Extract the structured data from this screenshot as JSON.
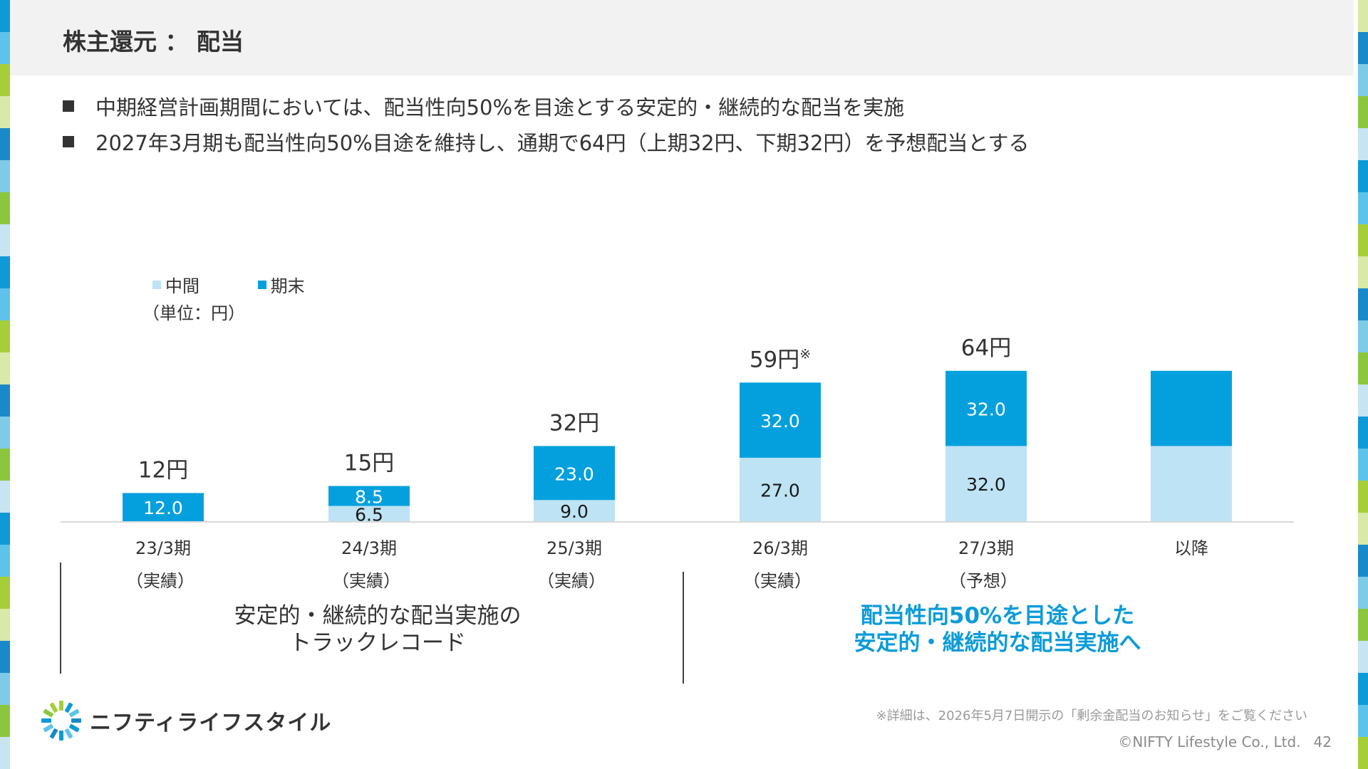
{
  "page": {
    "title": "株主還元 ： 配当",
    "bullets": [
      "中期経営計画期間においては、配当性向50%を目途とする安定的・継続的な配当を実施",
      "2027年3月期も配当性向50%目途を維持し、通期で64円（上期32円、下期32円）を予想配当とする"
    ],
    "left_caption": [
      "安定的・継続的な配当実施の",
      "トラックレコード"
    ],
    "right_caption": [
      "配当性向50%を目途とした",
      "安定的・継続的な配当実施へ"
    ],
    "footnote": "※詳細は、2026年5月7日開示の「剰余金配当のお知らせ」をご覧ください",
    "copyright": "©NIFTY Lifestyle Co., Ltd.",
    "page_number": "42",
    "logo_text": "ニフティライフスタイル",
    "logo_icon": "nifty-burst-logo-icon"
  },
  "colors": {
    "interim": "#bde3f4",
    "year_end": "#04a0de",
    "accent_text": "#0b9bd8",
    "stripe": [
      "#0e9ad7",
      "#5ec3ea",
      "#a5ce39",
      "#d8e9a8",
      "#1a89c9",
      "#7ecbe8",
      "#8cc63f",
      "#c7e4f3"
    ]
  },
  "chart_data": {
    "type": "bar",
    "stacked": true,
    "unit_label": "（単位：円）",
    "legend": [
      "中間",
      "期末"
    ],
    "legend_position": "top-left",
    "grid": false,
    "ylim": [
      0,
      64
    ],
    "categories": [
      "23/3期",
      "24/3期",
      "25/3期",
      "26/3期",
      "27/3期",
      "以降"
    ],
    "category_notes": [
      "（実績）",
      "（実績）",
      "（実績）",
      "（実績）",
      "（予想）",
      ""
    ],
    "series": [
      {
        "name": "中間",
        "values": [
          0,
          6.5,
          9.0,
          27.0,
          32.0,
          32.0
        ],
        "labels": [
          "",
          "6.5",
          "9.0",
          "27.0",
          "32.0",
          ""
        ]
      },
      {
        "name": "期末",
        "values": [
          12.0,
          8.5,
          23.0,
          32.0,
          32.0,
          32.0
        ],
        "labels": [
          "12.0",
          "8.5",
          "23.0",
          "32.0",
          "32.0",
          ""
        ]
      }
    ],
    "totals": [
      "12円",
      "15円",
      "32円",
      "59円",
      "64円",
      ""
    ],
    "total_marks": [
      "",
      "",
      "",
      "※",
      "",
      ""
    ]
  }
}
